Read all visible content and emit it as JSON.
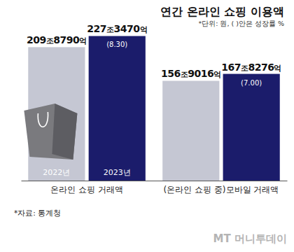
{
  "chart_data": {
    "type": "bar",
    "title": "연간 온라인 쇼핑 이용액",
    "subtitle": "*단위: 원, ( )안은 성장률 %",
    "source": "*자료: 통계청",
    "watermark": "MT 머니투데이",
    "categories": [
      "온라인 쇼핑 거래액",
      "(온라인 쇼핑 중)모바일 거래액"
    ],
    "series": [
      {
        "name": "2022년",
        "color": "#c5c7d3",
        "values": [
          2098790,
          1569016
        ],
        "value_labels": [
          "209조8790억",
          "156조9016억"
        ]
      },
      {
        "name": "2023년",
        "color": "#1b1c6b",
        "values": [
          2273470,
          1678276
        ],
        "value_labels": [
          "227조3470억",
          "167조8276억"
        ],
        "growth": [
          8.3,
          7.0
        ],
        "growth_labels": [
          "(8.30)",
          "(7.00)"
        ]
      }
    ],
    "ylim": [
      0,
      2400000
    ],
    "data_labels": true,
    "tick_labels": "x"
  }
}
